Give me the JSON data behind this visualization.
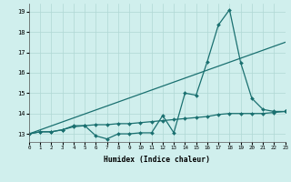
{
  "background_color": "#d0efed",
  "grid_color": "#b0d8d4",
  "line_color": "#1a7070",
  "xlim": [
    0,
    23
  ],
  "ylim": [
    12.6,
    19.4
  ],
  "yticks": [
    13,
    14,
    15,
    16,
    17,
    18,
    19
  ],
  "xticks": [
    0,
    1,
    2,
    3,
    4,
    5,
    6,
    7,
    8,
    9,
    10,
    11,
    12,
    13,
    14,
    15,
    16,
    17,
    18,
    19,
    20,
    21,
    22,
    23
  ],
  "xlabel": "Humidex (Indice chaleur)",
  "series1_x": [
    0,
    1,
    2,
    3,
    4,
    5,
    6,
    7,
    8,
    9,
    10,
    11,
    12,
    13,
    14,
    15,
    16,
    17,
    18,
    19,
    20,
    21,
    22,
    23
  ],
  "series1_y": [
    13.0,
    13.1,
    13.1,
    13.2,
    13.35,
    13.4,
    12.9,
    12.75,
    13.0,
    13.0,
    13.05,
    13.05,
    13.9,
    13.05,
    15.0,
    14.9,
    16.55,
    18.35,
    19.1,
    16.5,
    14.75,
    14.2,
    14.1,
    14.1
  ],
  "series2_x": [
    0,
    1,
    2,
    3,
    4,
    5,
    6,
    7,
    8,
    9,
    10,
    11,
    12,
    13,
    14,
    15,
    16,
    17,
    18,
    19,
    20,
    21,
    22,
    23
  ],
  "series2_y": [
    13.0,
    13.1,
    13.1,
    13.2,
    13.4,
    13.4,
    13.45,
    13.45,
    13.5,
    13.5,
    13.55,
    13.6,
    13.65,
    13.7,
    13.75,
    13.8,
    13.85,
    13.95,
    14.0,
    14.0,
    14.0,
    14.0,
    14.05,
    14.1
  ],
  "series3_x": [
    0,
    23
  ],
  "series3_y": [
    13.0,
    17.5
  ]
}
